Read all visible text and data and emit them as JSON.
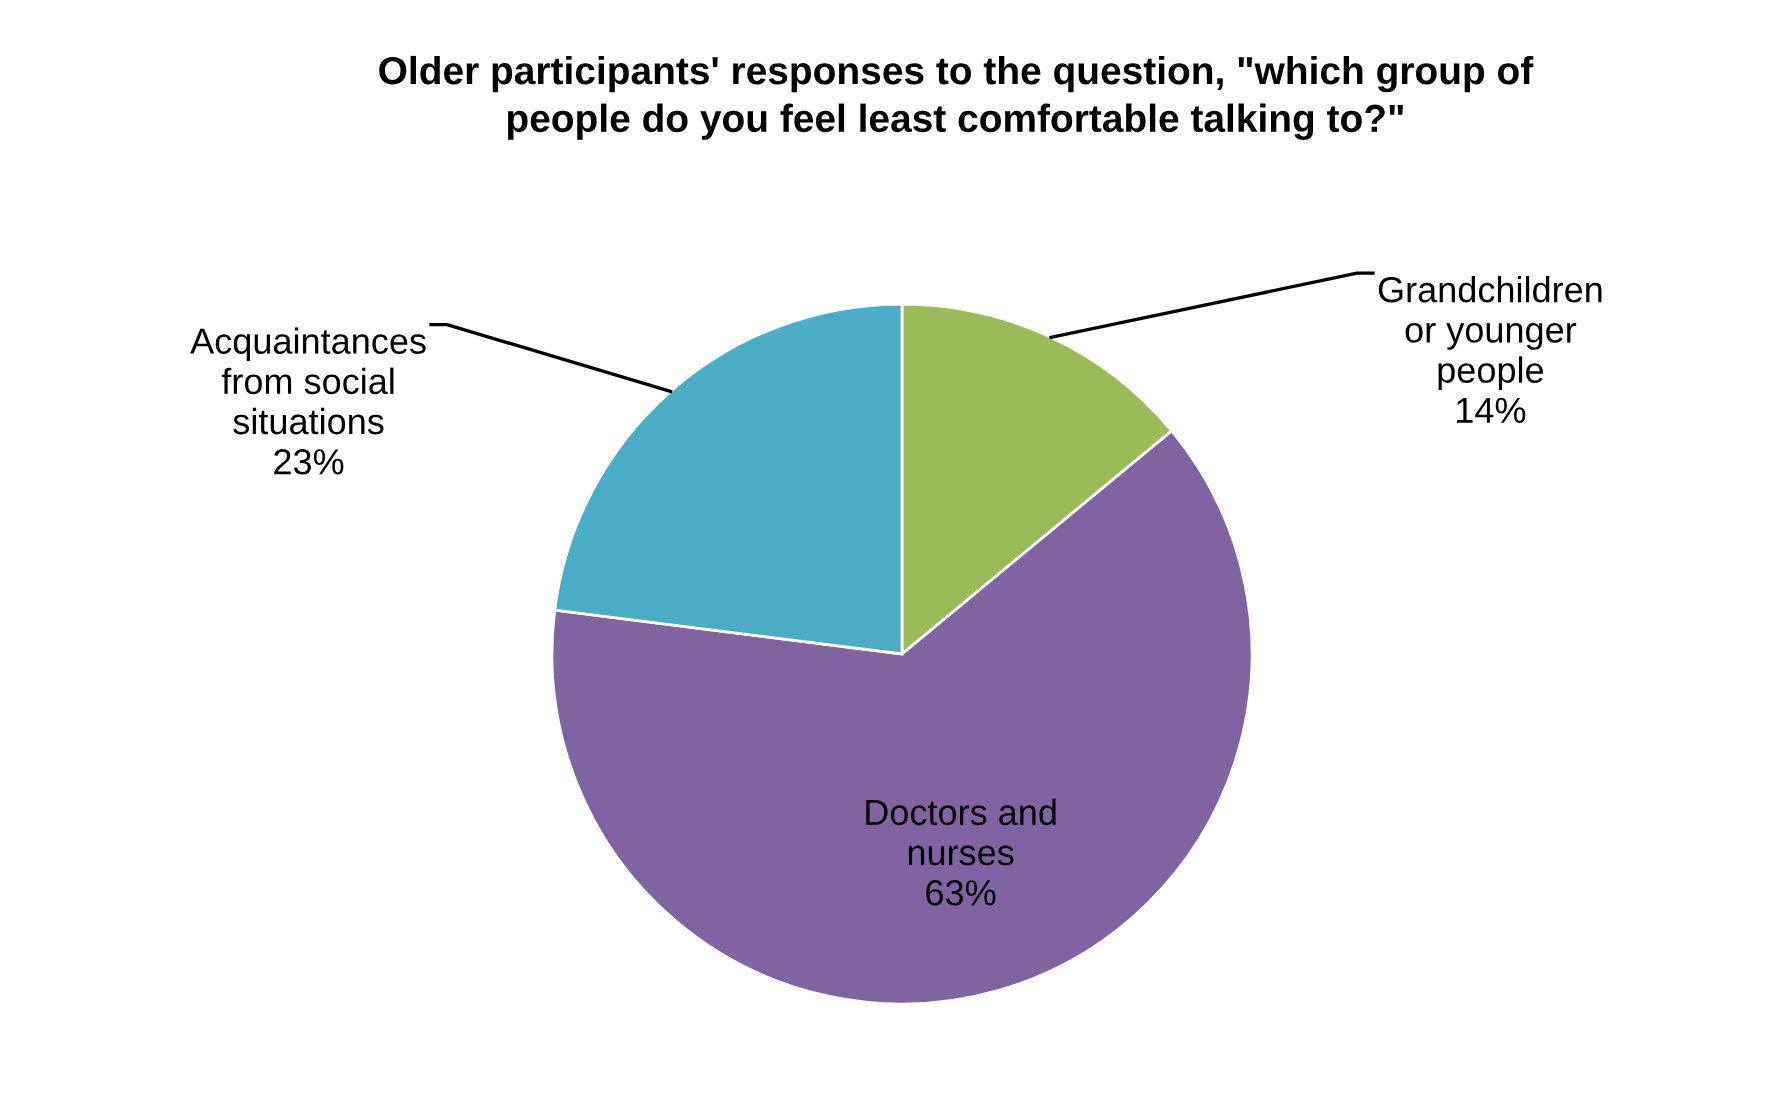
{
  "chart_data": {
    "type": "pie",
    "title": "Older participants' responses to the question, \"which group of\npeople do you feel least comfortable talking to?\"",
    "categories": [
      "Grandchildren\nor younger\npeople",
      "Doctors and\nnurses",
      "Acquaintances\nfrom social\nsituations"
    ],
    "values": [
      14,
      63,
      23
    ],
    "value_labels": [
      "14%",
      "63%",
      "23%"
    ],
    "colors": [
      "#9bbb59",
      "#8064a2",
      "#4bacc6"
    ],
    "legend": false
  }
}
